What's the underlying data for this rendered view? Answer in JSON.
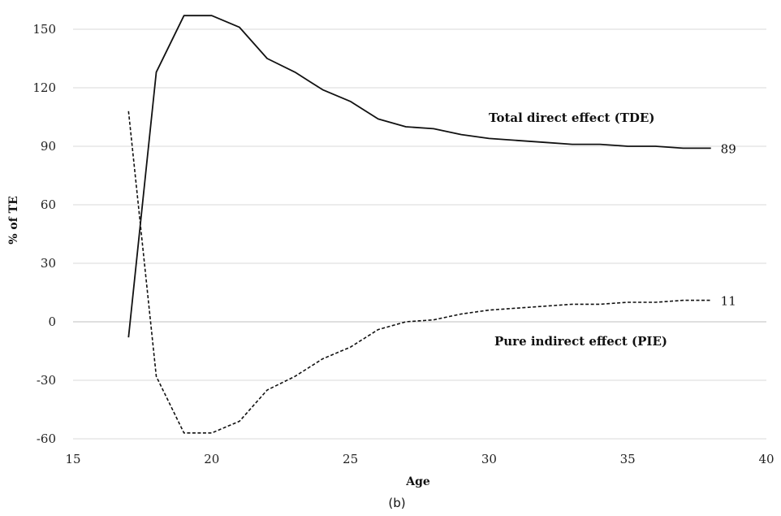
{
  "chart_data": {
    "type": "line",
    "xlabel": "Age",
    "ylabel": "% of TE",
    "caption": "(b)",
    "xlim": [
      15,
      40
    ],
    "ylim": [
      -60,
      160
    ],
    "xticks": [
      "15",
      "20",
      "25",
      "30",
      "35",
      "40"
    ],
    "yticks": [
      "-60",
      "-30",
      "0",
      "30",
      "60",
      "90",
      "120",
      "150"
    ],
    "grid": "horizontal",
    "series": [
      {
        "name": "Total direct effect (TDE)",
        "style": "solid",
        "end_label": "89",
        "x": [
          17,
          18,
          19,
          20,
          21,
          22,
          23,
          24,
          25,
          26,
          27,
          28,
          29,
          30,
          31,
          32,
          33,
          34,
          35,
          36,
          37,
          38
        ],
        "y": [
          -8,
          128,
          157,
          157,
          151,
          135,
          128,
          119,
          113,
          104,
          100,
          99,
          96,
          94,
          93,
          92,
          91,
          91,
          90,
          90,
          89,
          89
        ]
      },
      {
        "name": "Pure indirect effect (PIE)",
        "style": "dashed",
        "end_label": "11",
        "x": [
          17,
          18,
          19,
          20,
          21,
          22,
          23,
          24,
          25,
          26,
          27,
          28,
          29,
          30,
          31,
          32,
          33,
          34,
          35,
          36,
          37,
          38
        ],
        "y": [
          108,
          -28,
          -57,
          -57,
          -51,
          -35,
          -28,
          -19,
          -13,
          -4,
          0,
          1,
          4,
          6,
          7,
          8,
          9,
          9,
          10,
          10,
          11,
          11
        ]
      }
    ]
  }
}
